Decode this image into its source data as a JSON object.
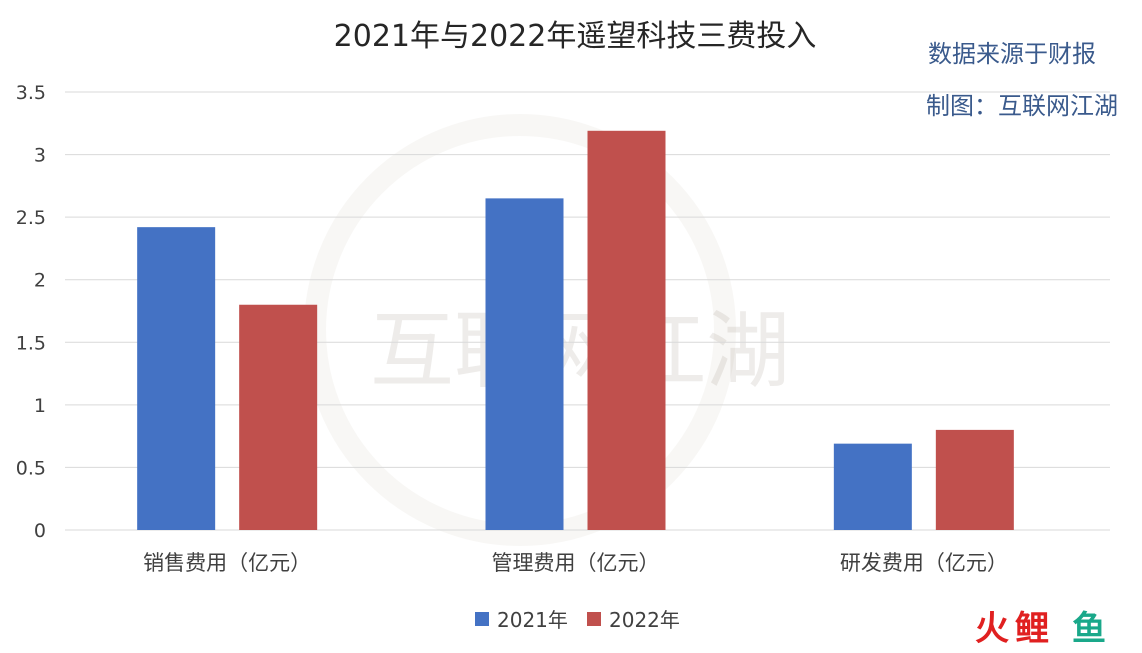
{
  "source_note": "数据来源于财报",
  "made_by": "制图：互联网江湖",
  "watermark": "互联网江湖",
  "corner_logo": {
    "part1": "火",
    "part2": "鲤",
    "part3": "鱼",
    "color1": "#e02020",
    "color2": "#1aa88a"
  },
  "colors": {
    "series_2021": "#4472c4",
    "series_2022": "#c0504d"
  },
  "chart_data": {
    "type": "bar",
    "title": "2021年与2022年遥望科技三费投入",
    "xlabel": "",
    "ylabel": "",
    "categories": [
      "销售费用（亿元）",
      "管理费用（亿元）",
      "研发费用（亿元）"
    ],
    "series": [
      {
        "name": "2021年",
        "values": [
          2.42,
          2.65,
          0.69
        ]
      },
      {
        "name": "2022年",
        "values": [
          1.8,
          3.19,
          0.8
        ]
      }
    ],
    "ylim": [
      0,
      3.5
    ],
    "yticks": [
      "0",
      "0.5",
      "1",
      "1.5",
      "2",
      "2.5",
      "3",
      "3.5"
    ],
    "grid": true,
    "legend_position": "bottom"
  }
}
